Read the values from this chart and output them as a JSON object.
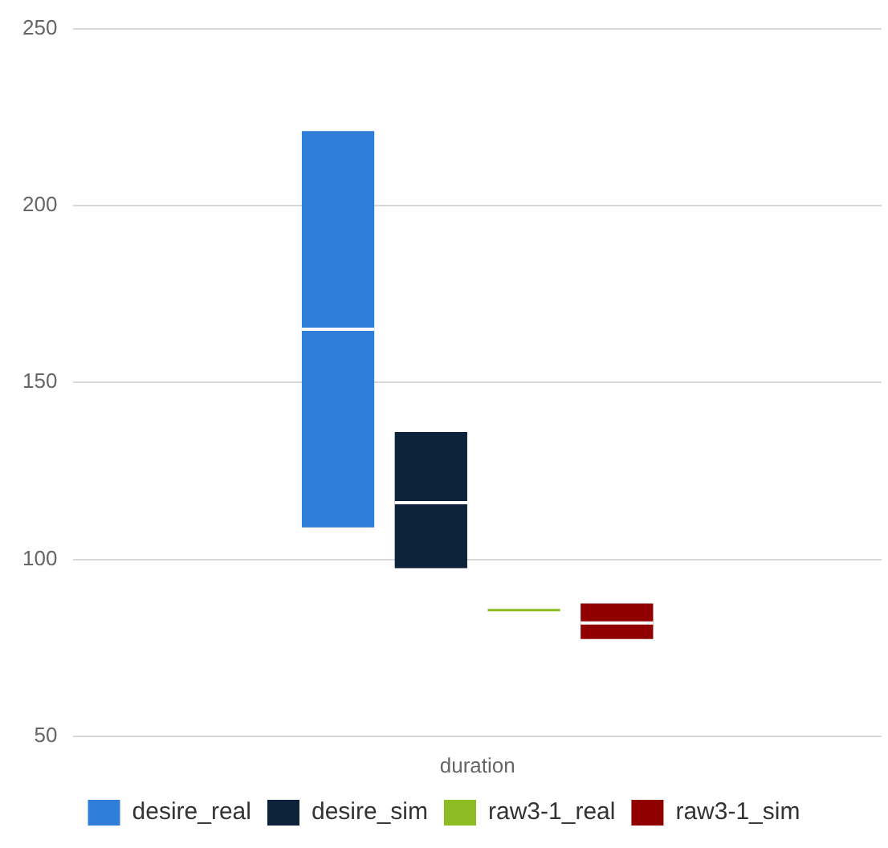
{
  "chart_data": {
    "type": "box",
    "categories": [
      "duration"
    ],
    "series": [
      {
        "name": "desire_real",
        "color": "#2f7ed8",
        "boxes": [
          {
            "low": 109,
            "q1": 109,
            "median": 165,
            "q3": 221,
            "high": 221
          }
        ]
      },
      {
        "name": "desire_sim",
        "color": "#0d233a",
        "boxes": [
          {
            "low": 97.5,
            "q1": 97.5,
            "median": 116,
            "q3": 136,
            "high": 136
          }
        ]
      },
      {
        "name": "raw3-1_real",
        "color": "#8bbc21",
        "boxes": [
          {
            "low": 86,
            "q1": 86,
            "median": 86,
            "q3": 86,
            "high": 86
          }
        ]
      },
      {
        "name": "raw3-1_sim",
        "color": "#910000",
        "boxes": [
          {
            "low": 77.5,
            "q1": 77.5,
            "median": 82,
            "q3": 87.5,
            "high": 87.5
          }
        ]
      }
    ],
    "ylim": [
      50,
      250
    ],
    "yticks": [
      50,
      100,
      150,
      200,
      250
    ],
    "grid": "y",
    "legend": "bottom"
  }
}
